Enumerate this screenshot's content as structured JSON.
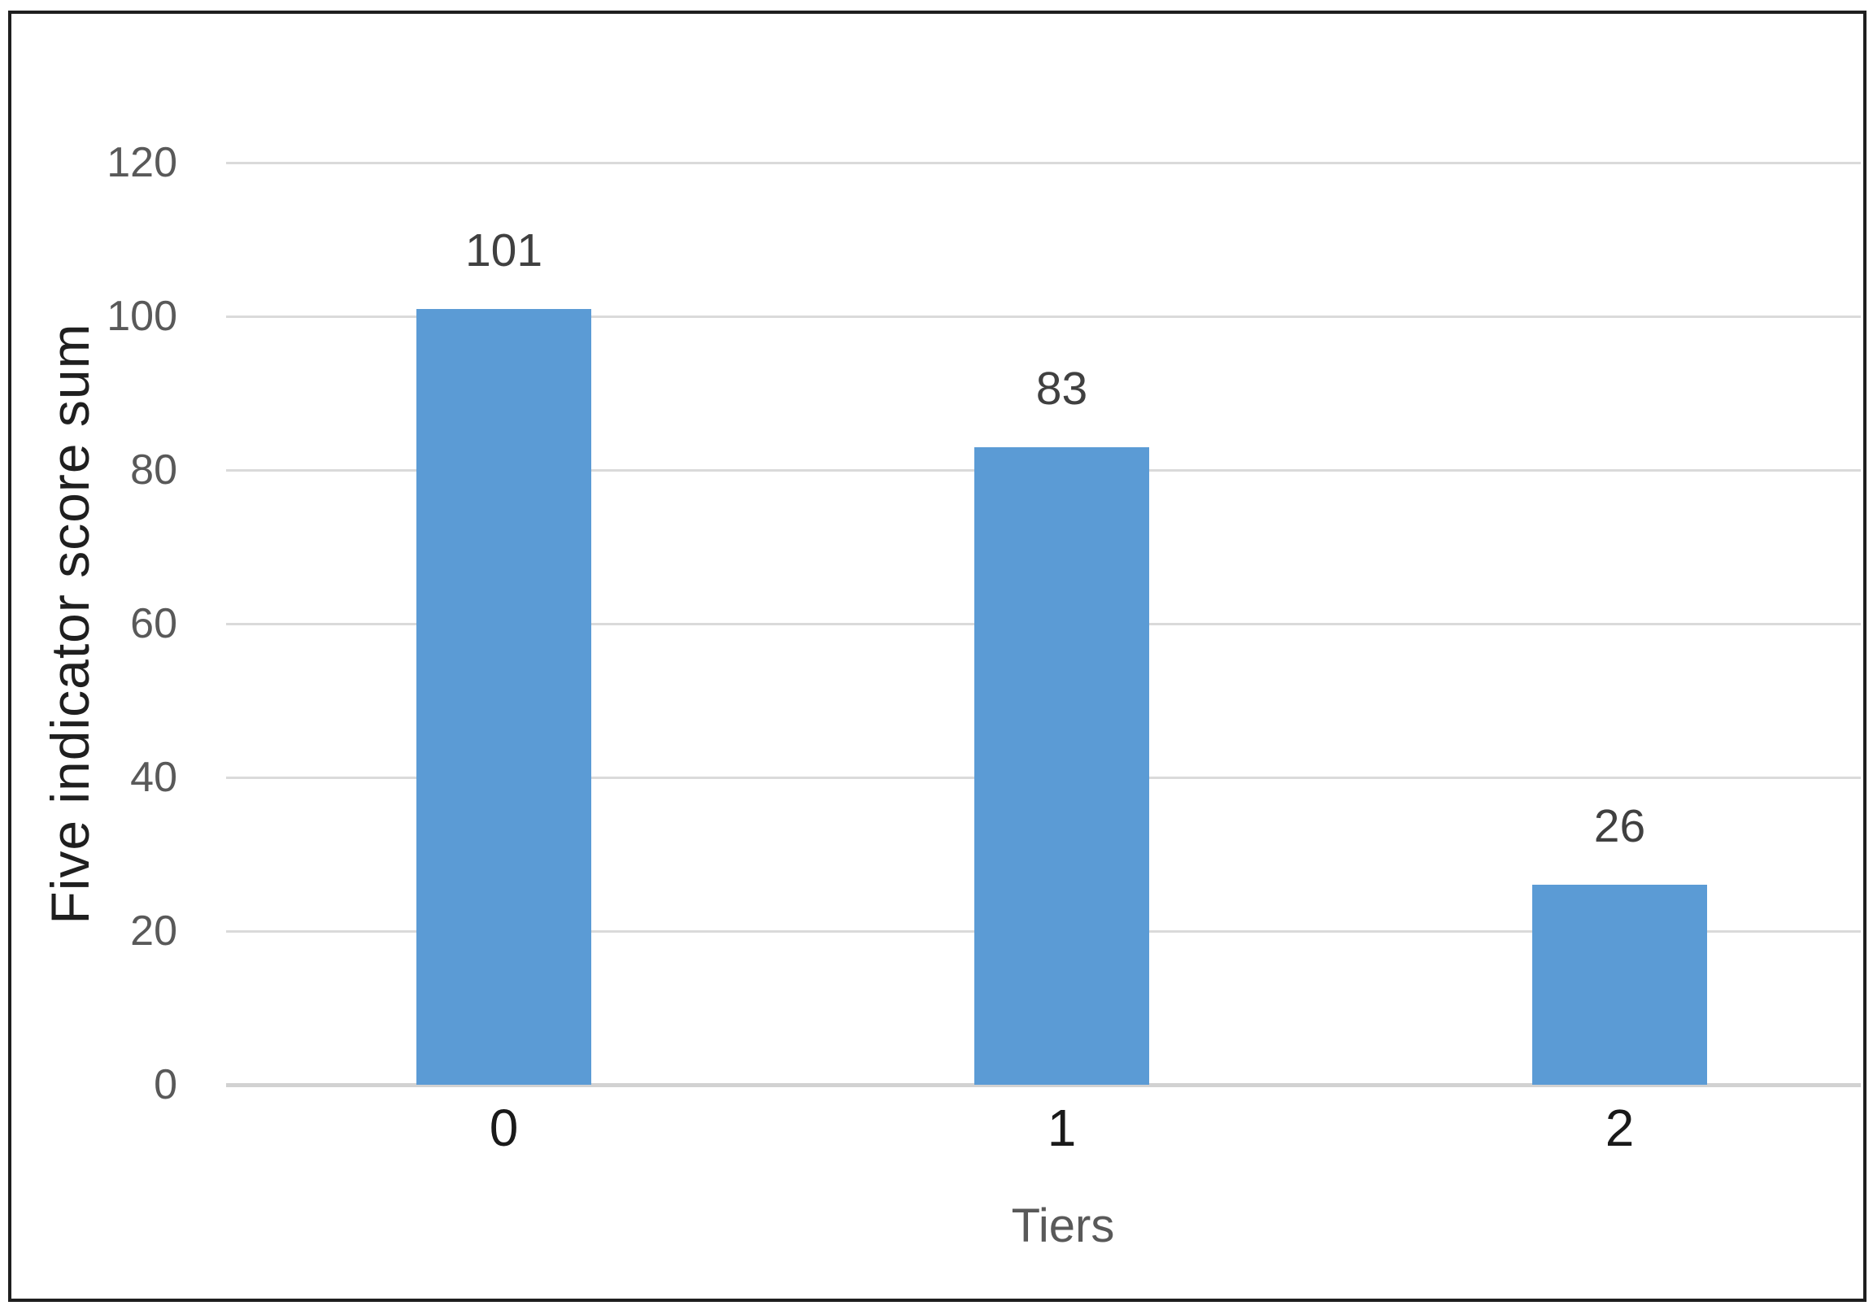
{
  "chart_data": {
    "type": "bar",
    "title": "",
    "categories": [
      "0",
      "1",
      "2"
    ],
    "values": [
      101,
      83,
      26
    ],
    "data_labels": [
      "101",
      "83",
      "26"
    ],
    "xlabel": "Tiers",
    "ylabel": "Five indicator score sum",
    "ylim": [
      0,
      120
    ],
    "yticks": [
      0,
      20,
      40,
      60,
      80,
      100,
      120
    ],
    "grid": true,
    "legend_position": "none",
    "colors": {
      "bar": "#5B9BD5",
      "gridline": "#DADADA",
      "axis_line": "#D2D2D2",
      "y_tick_label": "#595959",
      "x_tick_label": "#1A1A1A",
      "data_label": "#404040",
      "x_axis_title": "#595959",
      "y_axis_title": "#1F1F1F",
      "frame_border": "#1F1F1F",
      "background": "#FFFFFF"
    }
  }
}
